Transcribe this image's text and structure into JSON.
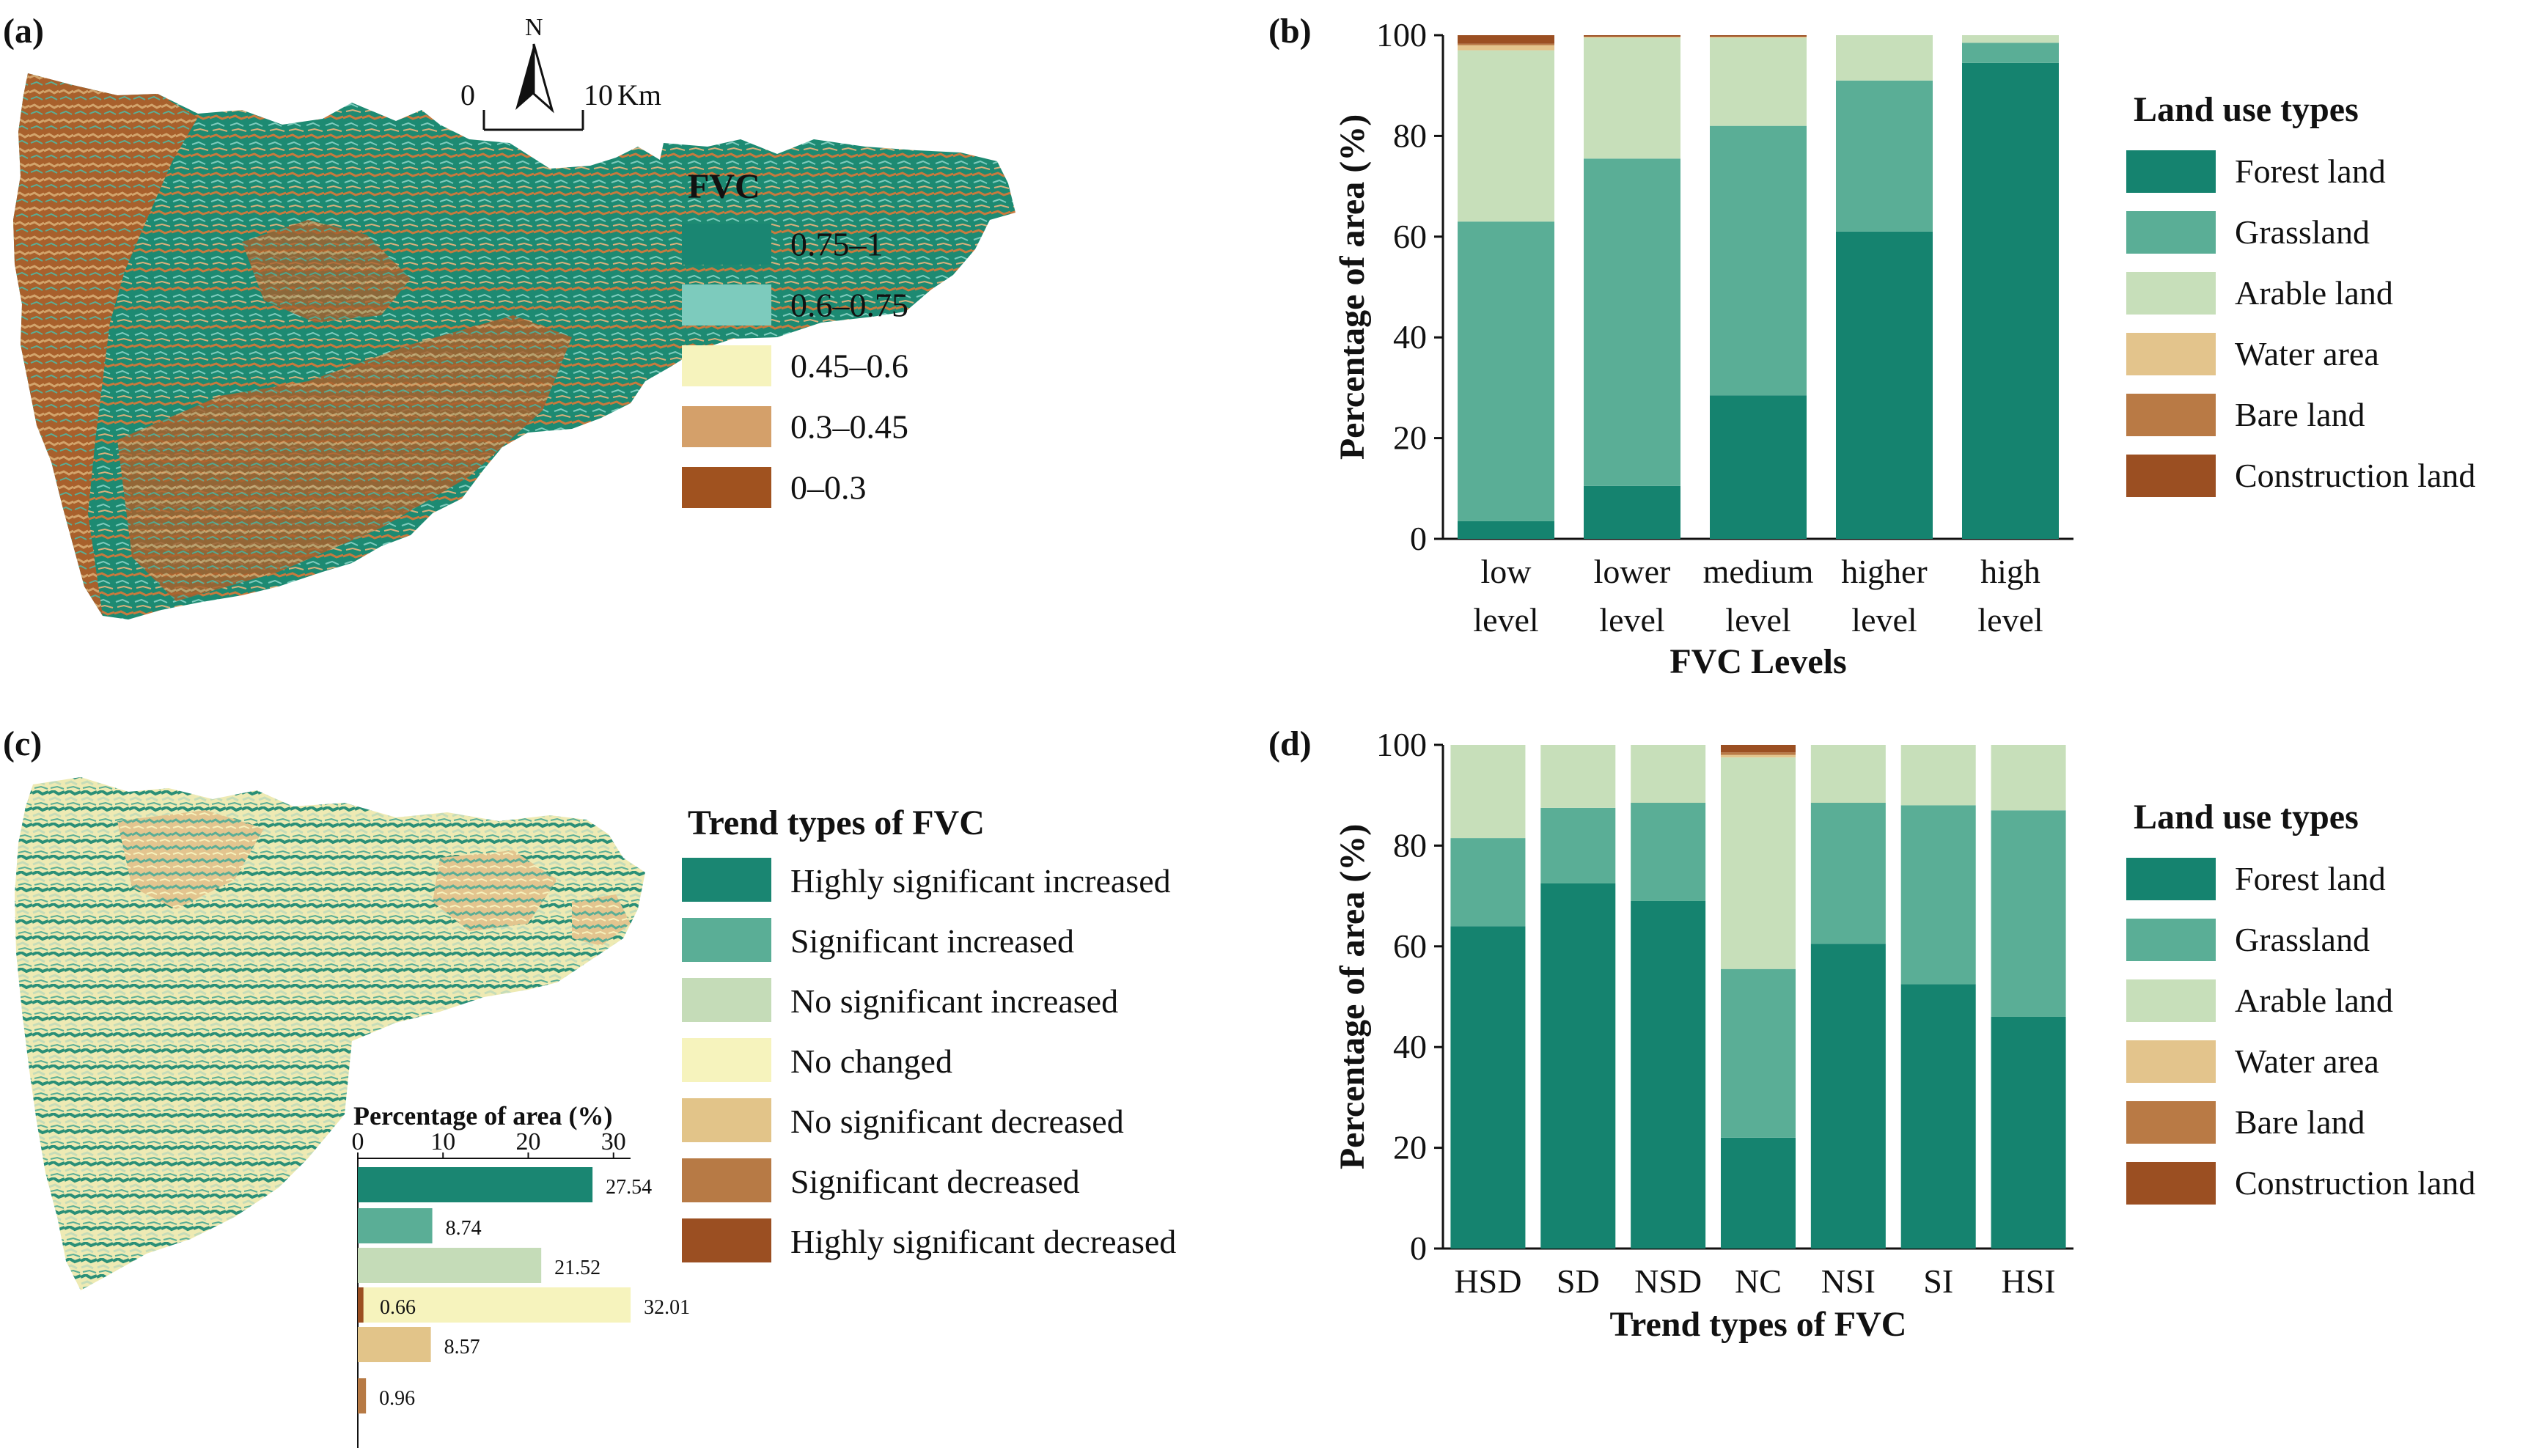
{
  "panels": {
    "a": {
      "label": "(a)",
      "scale": {
        "zero": "0",
        "ten": "10",
        "unit": "Km",
        "north": "N"
      },
      "legend_title": "FVC",
      "legend": [
        {
          "label": "0.75–1",
          "color": "#1a8672"
        },
        {
          "label": "0.6–0.75",
          "color": "#7dcbbd"
        },
        {
          "label": "0.45–0.6",
          "color": "#f6f3bd"
        },
        {
          "label": "0.3–0.45",
          "color": "#d4a06a"
        },
        {
          "label": "0–0.3",
          "color": "#a0521f"
        }
      ]
    },
    "b": {
      "label": "(b)"
    },
    "c": {
      "label": "(c)",
      "legend_title": "Trend types of FVC",
      "legend": [
        {
          "label": "Highly significant increased",
          "color": "#1a8672"
        },
        {
          "label": "Significant increased",
          "color": "#5aae96"
        },
        {
          "label": "No significant increased",
          "color": "#c5dcb8"
        },
        {
          "label": "No changed",
          "color": "#f6f3bd"
        },
        {
          "label": "No significant decreased",
          "color": "#e2c489"
        },
        {
          "label": "Significant decreased",
          "color": "#b77a45"
        },
        {
          "label": "Highly significant decreased",
          "color": "#9b4f22"
        }
      ]
    },
    "d": {
      "label": "(d)"
    }
  },
  "chart_data": [
    {
      "panel": "b",
      "type": "bar",
      "stacked": true,
      "categories": [
        "low\nlevel",
        "lower\nlevel",
        "medium\nlevel",
        "higher\nlevel",
        "high\nlevel"
      ],
      "xlabel": "FVC Levels",
      "ylabel": "Percentage of area (%)",
      "ylim": [
        0,
        100
      ],
      "yticks": [
        0,
        20,
        40,
        60,
        80,
        100
      ],
      "legend_title": "Land use types",
      "legend_position": "right",
      "series": [
        {
          "name": "Forest land",
          "color": "#15836f",
          "values": [
            3.5,
            10.5,
            28.5,
            61,
            94.5
          ]
        },
        {
          "name": "Grassland",
          "color": "#5aae96",
          "values": [
            59.5,
            65,
            53.5,
            30,
            4
          ]
        },
        {
          "name": "Arable land",
          "color": "#c7dfba",
          "values": [
            34,
            24,
            17.5,
            9,
            1.5
          ]
        },
        {
          "name": "Water area",
          "color": "#e3c48c",
          "values": [
            1,
            0.2,
            0.2,
            0,
            0
          ]
        },
        {
          "name": "Bare land",
          "color": "#b97a45",
          "values": [
            0.3,
            0,
            0,
            0,
            0
          ]
        },
        {
          "name": "Construction land",
          "color": "#9b4f22",
          "values": [
            1.7,
            0.3,
            0.3,
            0,
            0
          ]
        }
      ]
    },
    {
      "panel": "d",
      "type": "bar",
      "stacked": true,
      "categories": [
        "HSD",
        "SD",
        "NSD",
        "NC",
        "NSI",
        "SI",
        "HSI"
      ],
      "xlabel": "Trend types of FVC",
      "ylabel": "Percentage of area (%)",
      "ylim": [
        0,
        100
      ],
      "yticks": [
        0,
        20,
        40,
        60,
        80,
        100
      ],
      "legend_title": "Land use types",
      "legend_position": "right",
      "series": [
        {
          "name": "Forest land",
          "color": "#15836f",
          "values": [
            64,
            72.5,
            69,
            22,
            60.5,
            52.5,
            46
          ]
        },
        {
          "name": "Grassland",
          "color": "#5aae96",
          "values": [
            17.5,
            15,
            19.5,
            33.5,
            28,
            35.5,
            41
          ]
        },
        {
          "name": "Arable land",
          "color": "#c7dfba",
          "values": [
            18.5,
            12.5,
            11.5,
            42,
            11.5,
            12,
            13
          ]
        },
        {
          "name": "Water area",
          "color": "#e3c48c",
          "values": [
            0,
            0,
            0,
            0.5,
            0,
            0,
            0
          ]
        },
        {
          "name": "Bare land",
          "color": "#b97a45",
          "values": [
            0,
            0,
            0,
            0.5,
            0,
            0,
            0
          ]
        },
        {
          "name": "Construction land",
          "color": "#9b4f22",
          "values": [
            0,
            0,
            0,
            1.5,
            0,
            0,
            0
          ]
        }
      ]
    },
    {
      "panel": "c-inset",
      "type": "bar",
      "orientation": "horizontal",
      "xlabel": "Percentage of area (%)",
      "xlim": [
        0,
        32
      ],
      "xticks": [
        0,
        10,
        20,
        30
      ],
      "categories": [
        "Highly significant increased",
        "Significant increased",
        "No significant increased",
        "No changed",
        "No significant decreased",
        "Significant decreased",
        "Highly significant decreased"
      ],
      "values": [
        27.54,
        8.74,
        21.52,
        32.01,
        8.57,
        0.96,
        0.66
      ],
      "value_labels": [
        "27.54",
        "8.74",
        "21.52",
        "32.01",
        "8.57",
        "0.96",
        "0.66"
      ],
      "colors": [
        "#1a8672",
        "#5aae96",
        "#c5dcb8",
        "#f6f3bd",
        "#e2c489",
        "#b77a45",
        "#9b4f22"
      ]
    }
  ]
}
